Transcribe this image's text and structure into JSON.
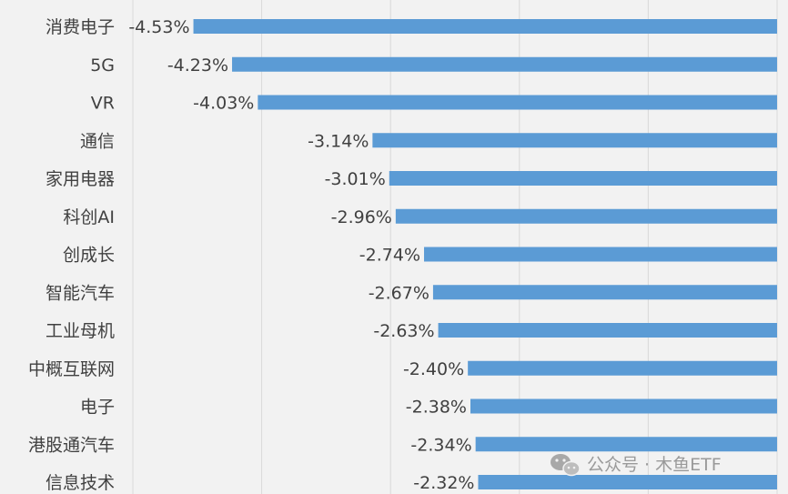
{
  "chart_data": {
    "type": "bar",
    "orientation": "horizontal",
    "categories": [
      "消费电子",
      "5G",
      "VR",
      "通信",
      "家用电器",
      "科创AI",
      "创成长",
      "智能汽车",
      "工业母机",
      "中概互联网",
      "电子",
      "港股通汽车",
      "信息技术"
    ],
    "values": [
      -4.53,
      -4.23,
      -4.03,
      -3.14,
      -3.01,
      -2.96,
      -2.74,
      -2.67,
      -2.63,
      -2.4,
      -2.38,
      -2.34,
      -2.32
    ],
    "value_labels": [
      "-4.53%",
      "-4.23%",
      "-4.03%",
      "-3.14%",
      "-3.01%",
      "-2.96%",
      "-2.74%",
      "-2.67%",
      "-2.63%",
      "-2.40%",
      "-2.38%",
      "-2.34%",
      "-2.32%"
    ],
    "xlim": [
      -5,
      0
    ],
    "grid": true,
    "bar_color": "#5b9bd5"
  },
  "watermark": {
    "icon": "wechat-icon",
    "text": "公众号 · 木鱼ETF"
  }
}
